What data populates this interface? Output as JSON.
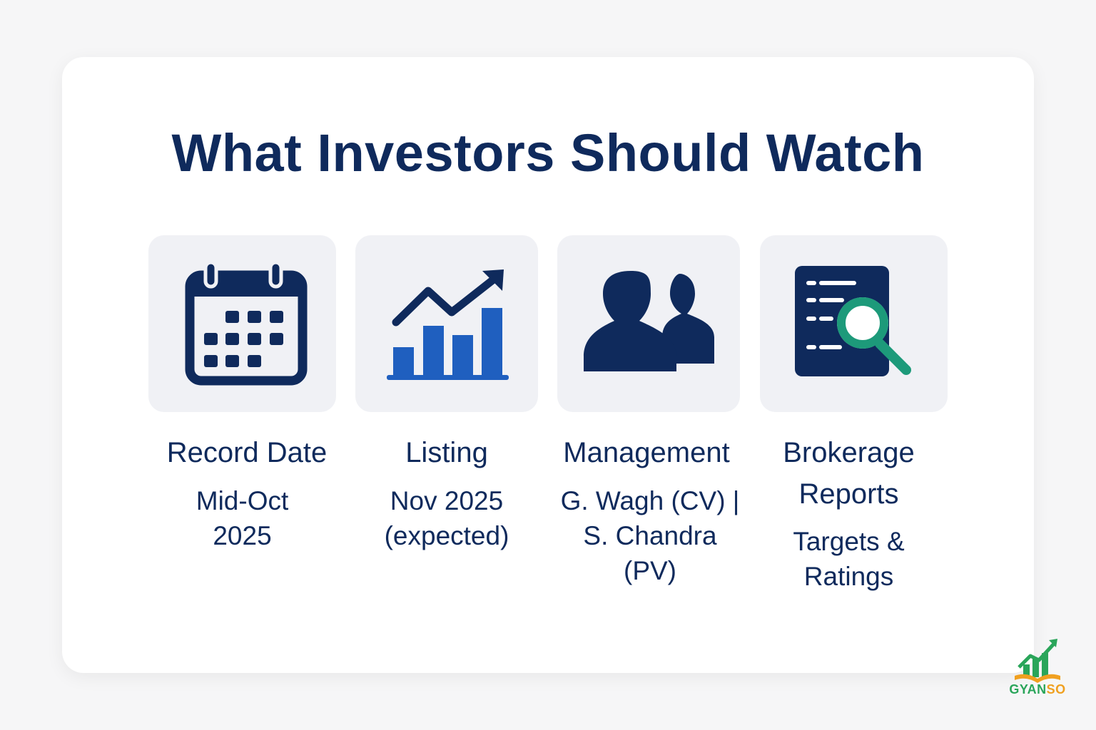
{
  "title": "What Investors Should Watch",
  "items": [
    {
      "icon": "calendar-icon",
      "label": "Record Date",
      "value_lines": [
        "Mid-Oct",
        "2025"
      ]
    },
    {
      "icon": "growth-chart-icon",
      "label": "Listing",
      "value_lines": [
        "Nov 2025",
        "(expected)"
      ]
    },
    {
      "icon": "people-icon",
      "label": "Management",
      "value_lines": [
        "G. Wagh (CV) |",
        "S. Chandra",
        "(PV)"
      ]
    },
    {
      "icon": "report-search-icon",
      "label_lines": [
        "Brokerage",
        "Reports"
      ],
      "value_lines": [
        "Targets &",
        "Ratings"
      ]
    }
  ],
  "brand": {
    "name_part1": "GYAN",
    "name_part2": "SO",
    "icon": "gyanso-logo-icon"
  },
  "colors": {
    "navy": "#0f2a5c",
    "blue": "#1f5fbf",
    "teal": "#1d9a7a",
    "tile": "#f0f1f5",
    "brand_green": "#2aa55a",
    "brand_orange": "#f0a020"
  }
}
